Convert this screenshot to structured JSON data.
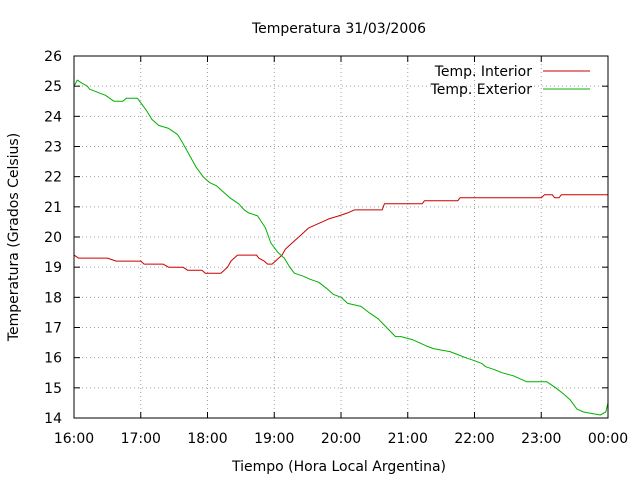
{
  "chart_data": {
    "type": "line",
    "title": "Temperatura 31/03/2006",
    "xlabel": "Tiempo (Hora Local Argentina)",
    "ylabel": "Temperatura (Grados Celsius)",
    "x_ticks": [
      "16:00",
      "17:00",
      "18:00",
      "19:00",
      "20:00",
      "21:00",
      "22:00",
      "23:00",
      "00:00"
    ],
    "xlim": [
      "16:00",
      "00:00"
    ],
    "ylim": [
      14,
      26
    ],
    "y_ticks": [
      14,
      15,
      16,
      17,
      18,
      19,
      20,
      21,
      22,
      23,
      24,
      25,
      26
    ],
    "grid": true,
    "legend_position": "top-right",
    "series": [
      {
        "name": "Temp. Interior",
        "color": "#cc0000",
        "points": [
          [
            "16:00",
            19.4
          ],
          [
            "16:04",
            19.3
          ],
          [
            "16:30",
            19.3
          ],
          [
            "16:38",
            19.2
          ],
          [
            "17:00",
            19.2
          ],
          [
            "17:03",
            19.1
          ],
          [
            "17:20",
            19.1
          ],
          [
            "17:25",
            19.0
          ],
          [
            "17:38",
            19.0
          ],
          [
            "17:42",
            18.9
          ],
          [
            "17:55",
            18.9
          ],
          [
            "17:58",
            18.8
          ],
          [
            "18:12",
            18.8
          ],
          [
            "18:15",
            18.9
          ],
          [
            "18:18",
            19.0
          ],
          [
            "18:21",
            19.2
          ],
          [
            "18:24",
            19.3
          ],
          [
            "18:27",
            19.4
          ],
          [
            "18:44",
            19.4
          ],
          [
            "18:46",
            19.3
          ],
          [
            "18:51",
            19.2
          ],
          [
            "18:54",
            19.1
          ],
          [
            "18:58",
            19.1
          ],
          [
            "19:01",
            19.2
          ],
          [
            "19:04",
            19.3
          ],
          [
            "19:07",
            19.4
          ],
          [
            "19:10",
            19.6
          ],
          [
            "19:13",
            19.7
          ],
          [
            "19:19",
            19.9
          ],
          [
            "19:25",
            20.1
          ],
          [
            "19:31",
            20.3
          ],
          [
            "19:37",
            20.4
          ],
          [
            "19:43",
            20.5
          ],
          [
            "19:49",
            20.6
          ],
          [
            "19:58",
            20.7
          ],
          [
            "20:06",
            20.8
          ],
          [
            "20:12",
            20.9
          ],
          [
            "20:37",
            20.9
          ],
          [
            "20:39",
            21.1
          ],
          [
            "21:13",
            21.1
          ],
          [
            "21:15",
            21.2
          ],
          [
            "21:45",
            21.2
          ],
          [
            "21:47",
            21.3
          ],
          [
            "22:00",
            21.3
          ],
          [
            "23:00",
            21.3
          ],
          [
            "23:03",
            21.4
          ],
          [
            "23:10",
            21.4
          ],
          [
            "23:12",
            21.3
          ],
          [
            "23:16",
            21.3
          ],
          [
            "23:18",
            21.4
          ],
          [
            "00:00",
            21.4
          ]
        ]
      },
      {
        "name": "Temp. Exterior",
        "color": "#00b000",
        "points": [
          [
            "16:00",
            25.0
          ],
          [
            "16:03",
            25.2
          ],
          [
            "16:07",
            25.1
          ],
          [
            "16:12",
            25.0
          ],
          [
            "16:14",
            24.9
          ],
          [
            "16:21",
            24.8
          ],
          [
            "16:28",
            24.7
          ],
          [
            "16:32",
            24.6
          ],
          [
            "16:36",
            24.5
          ],
          [
            "16:44",
            24.5
          ],
          [
            "16:47",
            24.6
          ],
          [
            "16:57",
            24.6
          ],
          [
            "17:01",
            24.4
          ],
          [
            "17:05",
            24.2
          ],
          [
            "17:10",
            23.9
          ],
          [
            "17:16",
            23.7
          ],
          [
            "17:25",
            23.6
          ],
          [
            "17:33",
            23.4
          ],
          [
            "17:38",
            23.1
          ],
          [
            "17:44",
            22.7
          ],
          [
            "17:50",
            22.3
          ],
          [
            "17:56",
            22.0
          ],
          [
            "18:02",
            21.8
          ],
          [
            "18:08",
            21.7
          ],
          [
            "18:14",
            21.5
          ],
          [
            "18:20",
            21.3
          ],
          [
            "18:28",
            21.1
          ],
          [
            "18:33",
            20.9
          ],
          [
            "18:37",
            20.8
          ],
          [
            "18:45",
            20.7
          ],
          [
            "18:52",
            20.3
          ],
          [
            "18:57",
            19.8
          ],
          [
            "19:03",
            19.5
          ],
          [
            "19:06",
            19.4
          ],
          [
            "19:09",
            19.3
          ],
          [
            "19:14",
            19.0
          ],
          [
            "19:18",
            18.8
          ],
          [
            "19:26",
            18.7
          ],
          [
            "19:32",
            18.6
          ],
          [
            "19:40",
            18.5
          ],
          [
            "19:47",
            18.3
          ],
          [
            "19:53",
            18.1
          ],
          [
            "20:00",
            18.0
          ],
          [
            "20:06",
            17.8
          ],
          [
            "20:18",
            17.7
          ],
          [
            "20:25",
            17.5
          ],
          [
            "20:33",
            17.3
          ],
          [
            "20:41",
            17.0
          ],
          [
            "20:49",
            16.7
          ],
          [
            "20:54",
            16.7
          ],
          [
            "21:04",
            16.6
          ],
          [
            "21:10",
            16.5
          ],
          [
            "21:16",
            16.4
          ],
          [
            "21:23",
            16.3
          ],
          [
            "21:38",
            16.2
          ],
          [
            "21:45",
            16.1
          ],
          [
            "21:52",
            16.0
          ],
          [
            "22:00",
            15.9
          ],
          [
            "22:07",
            15.8
          ],
          [
            "22:10",
            15.7
          ],
          [
            "22:18",
            15.6
          ],
          [
            "22:25",
            15.5
          ],
          [
            "22:35",
            15.4
          ],
          [
            "22:47",
            15.2
          ],
          [
            "23:05",
            15.2
          ],
          [
            "23:13",
            15.0
          ],
          [
            "23:20",
            14.8
          ],
          [
            "23:26",
            14.6
          ],
          [
            "23:32",
            14.3
          ],
          [
            "23:38",
            14.2
          ],
          [
            "23:53",
            14.1
          ],
          [
            "23:58",
            14.2
          ],
          [
            "00:00",
            14.5
          ]
        ]
      }
    ]
  }
}
